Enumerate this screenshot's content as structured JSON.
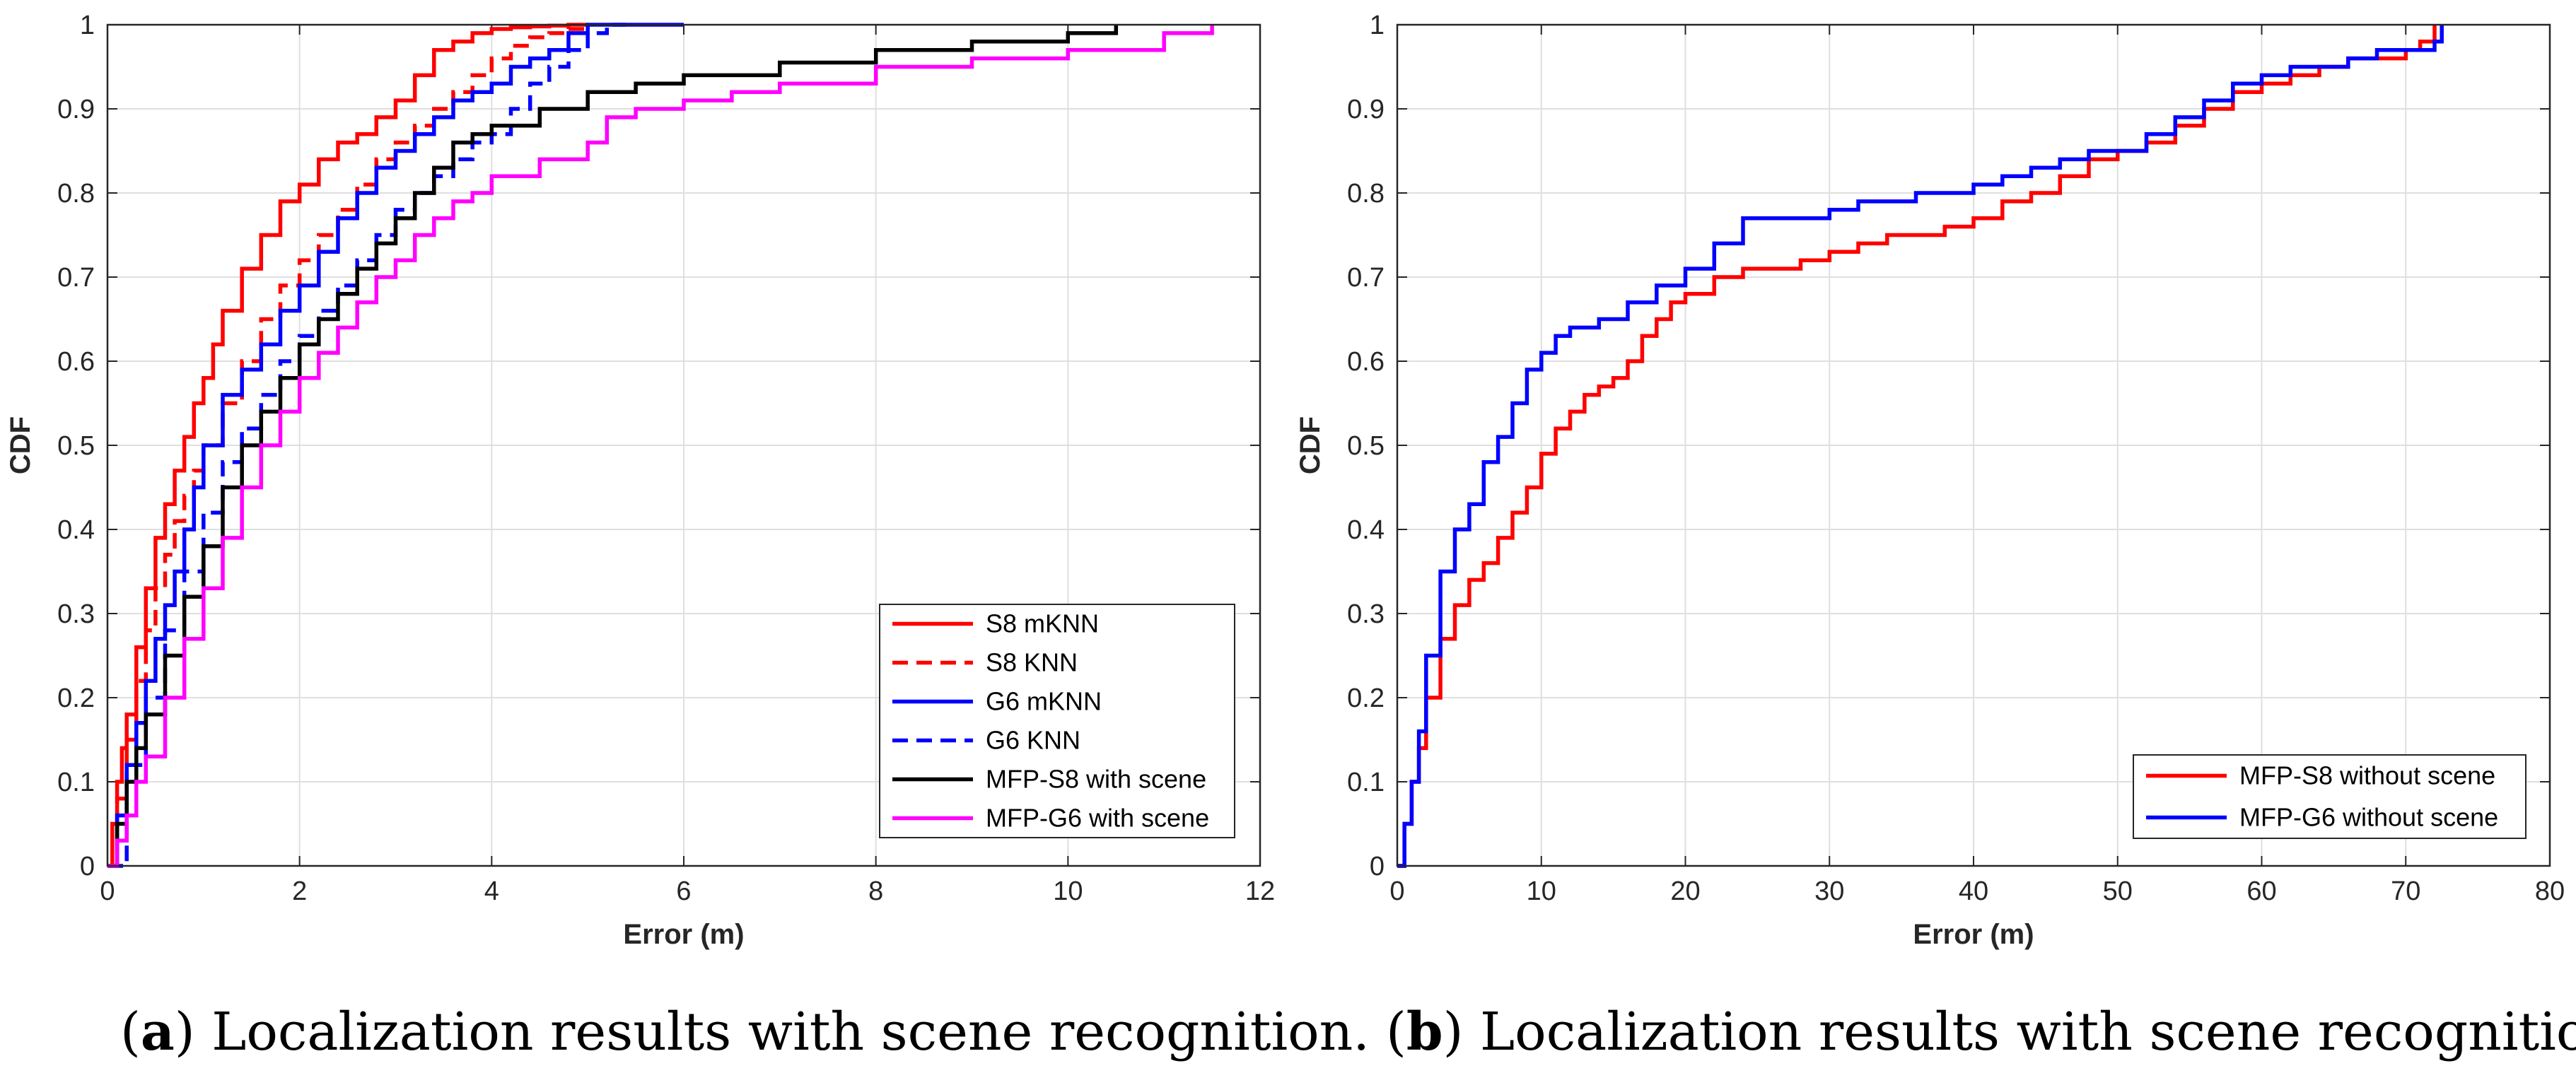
{
  "chart_data": [
    {
      "type": "line",
      "panel": "a",
      "caption_letter": "a",
      "caption_text": ") Localization results with scene recognition.",
      "xlabel": "Error (m)",
      "ylabel": "CDF",
      "xlim": [
        0,
        12
      ],
      "ylim": [
        0,
        1
      ],
      "xticks": [
        "0",
        "2",
        "4",
        "6",
        "8",
        "10",
        "12"
      ],
      "yticks": [
        "0",
        "0.1",
        "0.2",
        "0.3",
        "0.4",
        "0.5",
        "0.6",
        "0.7",
        "0.8",
        "0.9",
        "1"
      ],
      "grid": true,
      "legend_position": "bottom-right",
      "series": [
        {
          "name": "S8 mKNN",
          "color": "#ff0000",
          "dash": "solid",
          "x": [
            0,
            0.05,
            0.1,
            0.15,
            0.2,
            0.3,
            0.4,
            0.5,
            0.6,
            0.7,
            0.8,
            0.9,
            1.0,
            1.1,
            1.2,
            1.4,
            1.6,
            1.8,
            2.0,
            2.2,
            2.4,
            2.6,
            2.8,
            3.0,
            3.2,
            3.4,
            3.6,
            3.8,
            4.0,
            4.2,
            4.4,
            4.6,
            4.8,
            5.0
          ],
          "y": [
            0,
            0.05,
            0.1,
            0.14,
            0.18,
            0.26,
            0.33,
            0.39,
            0.43,
            0.47,
            0.51,
            0.55,
            0.58,
            0.62,
            0.66,
            0.71,
            0.75,
            0.79,
            0.81,
            0.84,
            0.86,
            0.87,
            0.89,
            0.91,
            0.94,
            0.97,
            0.98,
            0.99,
            0.995,
            0.997,
            0.998,
            0.999,
            1.0,
            1.0
          ]
        },
        {
          "name": "S8 KNN",
          "color": "#ff0000",
          "dash": "dashed",
          "x": [
            0,
            0.1,
            0.2,
            0.3,
            0.4,
            0.5,
            0.6,
            0.7,
            0.8,
            0.9,
            1.0,
            1.2,
            1.4,
            1.6,
            1.8,
            2.0,
            2.2,
            2.4,
            2.6,
            2.8,
            3.0,
            3.2,
            3.4,
            3.6,
            3.8,
            4.0,
            4.2,
            4.4,
            4.6,
            4.8,
            5.0
          ],
          "y": [
            0,
            0.08,
            0.15,
            0.22,
            0.28,
            0.33,
            0.37,
            0.41,
            0.44,
            0.47,
            0.5,
            0.55,
            0.6,
            0.65,
            0.69,
            0.72,
            0.75,
            0.78,
            0.81,
            0.84,
            0.86,
            0.88,
            0.9,
            0.92,
            0.94,
            0.96,
            0.975,
            0.985,
            0.99,
            0.995,
            1.0
          ]
        },
        {
          "name": "G6 mKNN",
          "color": "#0000ff",
          "dash": "solid",
          "x": [
            0,
            0.1,
            0.2,
            0.3,
            0.4,
            0.5,
            0.6,
            0.7,
            0.8,
            0.9,
            1.0,
            1.2,
            1.4,
            1.6,
            1.8,
            2.0,
            2.2,
            2.4,
            2.6,
            2.8,
            3.0,
            3.2,
            3.4,
            3.6,
            3.8,
            4.0,
            4.2,
            4.4,
            4.6,
            4.8,
            5.0,
            5.5,
            6.0
          ],
          "y": [
            0,
            0.06,
            0.12,
            0.17,
            0.22,
            0.27,
            0.31,
            0.35,
            0.4,
            0.45,
            0.5,
            0.56,
            0.59,
            0.62,
            0.66,
            0.69,
            0.73,
            0.77,
            0.8,
            0.83,
            0.85,
            0.87,
            0.89,
            0.91,
            0.92,
            0.93,
            0.95,
            0.96,
            0.97,
            0.99,
            1.0,
            1.0,
            1.0
          ]
        },
        {
          "name": "G6 KNN",
          "color": "#0000ff",
          "dash": "dashed",
          "x": [
            0,
            0.2,
            0.4,
            0.6,
            0.8,
            1.0,
            1.2,
            1.4,
            1.6,
            1.8,
            2.0,
            2.2,
            2.4,
            2.6,
            2.8,
            3.0,
            3.2,
            3.4,
            3.6,
            3.8,
            4.0,
            4.2,
            4.4,
            4.6,
            4.8,
            5.0,
            5.2,
            5.4
          ],
          "y": [
            0,
            0.12,
            0.2,
            0.28,
            0.35,
            0.42,
            0.48,
            0.52,
            0.56,
            0.6,
            0.63,
            0.66,
            0.69,
            0.72,
            0.75,
            0.78,
            0.8,
            0.82,
            0.84,
            0.86,
            0.87,
            0.9,
            0.93,
            0.95,
            0.97,
            0.99,
            1.0,
            1.0
          ]
        },
        {
          "name": "MFP-S8 with scene",
          "color": "#000000",
          "dash": "solid",
          "x": [
            0,
            0.1,
            0.2,
            0.3,
            0.4,
            0.6,
            0.8,
            1.0,
            1.2,
            1.4,
            1.6,
            1.8,
            2.0,
            2.2,
            2.4,
            2.6,
            2.8,
            3.0,
            3.2,
            3.4,
            3.6,
            3.8,
            4.0,
            4.5,
            5.0,
            5.5,
            6.0,
            7.0,
            8.0,
            9.0,
            10.0,
            10.5
          ],
          "y": [
            0,
            0.05,
            0.1,
            0.14,
            0.18,
            0.25,
            0.32,
            0.38,
            0.45,
            0.5,
            0.54,
            0.58,
            0.62,
            0.65,
            0.68,
            0.71,
            0.74,
            0.77,
            0.8,
            0.83,
            0.86,
            0.87,
            0.88,
            0.9,
            0.92,
            0.93,
            0.94,
            0.955,
            0.97,
            0.98,
            0.99,
            1.0
          ]
        },
        {
          "name": "MFP-G6 with scene",
          "color": "#ff00ff",
          "dash": "solid",
          "x": [
            0,
            0.1,
            0.2,
            0.3,
            0.4,
            0.6,
            0.8,
            1.0,
            1.2,
            1.4,
            1.6,
            1.8,
            2.0,
            2.2,
            2.4,
            2.6,
            2.8,
            3.0,
            3.2,
            3.4,
            3.6,
            3.8,
            4.0,
            4.5,
            5.0,
            5.2,
            5.5,
            6.0,
            6.5,
            7.0,
            8.0,
            9.0,
            10.0,
            11.0,
            11.5
          ],
          "y": [
            0,
            0.03,
            0.06,
            0.1,
            0.13,
            0.2,
            0.27,
            0.33,
            0.39,
            0.45,
            0.5,
            0.54,
            0.58,
            0.61,
            0.64,
            0.67,
            0.7,
            0.72,
            0.75,
            0.77,
            0.79,
            0.8,
            0.82,
            0.84,
            0.86,
            0.89,
            0.9,
            0.91,
            0.92,
            0.93,
            0.95,
            0.96,
            0.97,
            0.99,
            1.0
          ]
        }
      ]
    },
    {
      "type": "line",
      "panel": "b",
      "caption_letter": "b",
      "caption_text": ") Localization results with scene recognition.",
      "xlabel": "Error (m)",
      "ylabel": "CDF",
      "xlim": [
        0,
        80
      ],
      "ylim": [
        0,
        1
      ],
      "xticks": [
        "0",
        "10",
        "20",
        "30",
        "40",
        "50",
        "60",
        "70",
        "80"
      ],
      "yticks": [
        "0",
        "0.1",
        "0.2",
        "0.3",
        "0.4",
        "0.5",
        "0.6",
        "0.7",
        "0.8",
        "0.9",
        "1"
      ],
      "grid": true,
      "legend_position": "bottom-right",
      "series": [
        {
          "name": "MFP-S8 without scene",
          "color": "#ff0000",
          "dash": "solid",
          "x": [
            0,
            0.5,
            1,
            1.5,
            2,
            3,
            4,
            5,
            6,
            7,
            8,
            9,
            10,
            11,
            12,
            13,
            14,
            15,
            16,
            17,
            18,
            19,
            20,
            22,
            24,
            26,
            28,
            30,
            32,
            34,
            36,
            38,
            40,
            42,
            44,
            46,
            48,
            50,
            52,
            54,
            56,
            58,
            60,
            62,
            64,
            66,
            68,
            70,
            71,
            72
          ],
          "y": [
            0,
            0.05,
            0.1,
            0.14,
            0.2,
            0.27,
            0.31,
            0.34,
            0.36,
            0.39,
            0.42,
            0.45,
            0.49,
            0.52,
            0.54,
            0.56,
            0.57,
            0.58,
            0.6,
            0.63,
            0.65,
            0.67,
            0.68,
            0.7,
            0.71,
            0.71,
            0.72,
            0.73,
            0.74,
            0.75,
            0.75,
            0.76,
            0.77,
            0.79,
            0.8,
            0.82,
            0.84,
            0.85,
            0.86,
            0.88,
            0.9,
            0.92,
            0.93,
            0.94,
            0.95,
            0.96,
            0.96,
            0.97,
            0.98,
            1.0
          ]
        },
        {
          "name": "MFP-G6 without scene",
          "color": "#0000ff",
          "dash": "solid",
          "x": [
            0,
            0.5,
            1,
            1.5,
            2,
            3,
            4,
            5,
            6,
            7,
            8,
            9,
            10,
            11,
            12,
            14,
            16,
            18,
            20,
            22,
            24,
            26,
            28,
            30,
            32,
            34,
            36,
            38,
            40,
            42,
            44,
            46,
            48,
            50,
            52,
            54,
            56,
            58,
            60,
            62,
            64,
            66,
            68,
            70,
            72,
            72.5
          ],
          "y": [
            0,
            0.05,
            0.1,
            0.16,
            0.25,
            0.35,
            0.4,
            0.43,
            0.48,
            0.51,
            0.55,
            0.59,
            0.61,
            0.63,
            0.64,
            0.65,
            0.67,
            0.69,
            0.71,
            0.74,
            0.77,
            0.77,
            0.77,
            0.78,
            0.79,
            0.79,
            0.8,
            0.8,
            0.81,
            0.82,
            0.83,
            0.84,
            0.85,
            0.85,
            0.87,
            0.89,
            0.91,
            0.93,
            0.94,
            0.95,
            0.95,
            0.96,
            0.97,
            0.97,
            0.98,
            1.0
          ]
        }
      ]
    }
  ]
}
